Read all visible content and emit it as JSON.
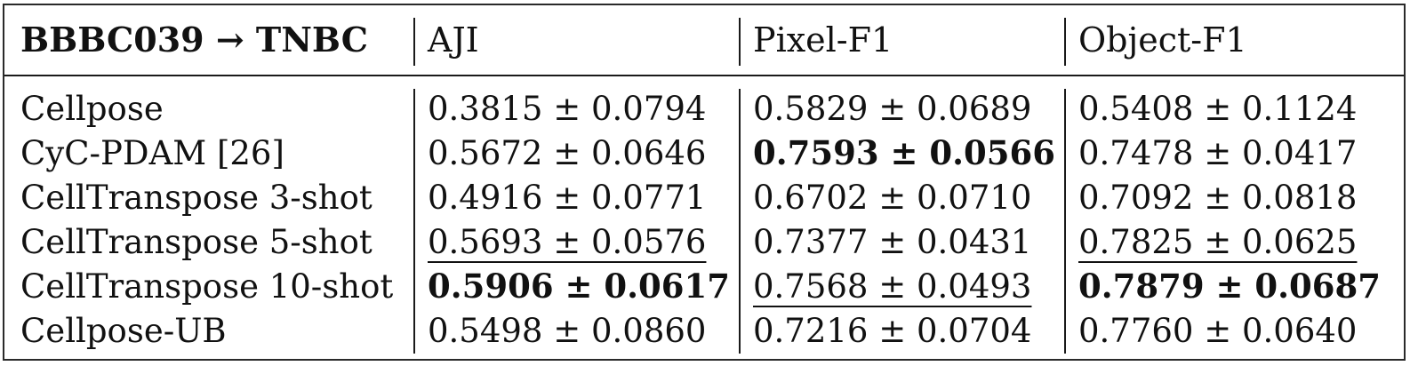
{
  "header": {
    "setting": "BBBC039 → TNBC",
    "columns": [
      "AJI",
      "Pixel-F1",
      "Object-F1"
    ]
  },
  "rows": [
    {
      "method": "Cellpose",
      "aji": "0.3815 ± 0.0794",
      "pixel_f1": "0.5829 ± 0.0689",
      "object_f1": "0.5408 ± 0.1124"
    },
    {
      "method": "CyC-PDAM [26]",
      "aji": "0.5672 ± 0.0646",
      "pixel_f1": "0.7593 ± 0.0566",
      "object_f1": "0.7478 ± 0.0417"
    },
    {
      "method": "CellTranspose 3-shot",
      "aji": "0.4916 ± 0.0771",
      "pixel_f1": "0.6702 ± 0.0710",
      "object_f1": "0.7092 ± 0.0818"
    },
    {
      "method": "CellTranspose 5-shot",
      "aji": "0.5693 ± 0.0576",
      "pixel_f1": "0.7377 ± 0.0431",
      "object_f1": "0.7825 ± 0.0625"
    },
    {
      "method": "CellTranspose 10-shot",
      "aji": "0.5906 ± 0.0617",
      "pixel_f1": "0.7568 ± 0.0493",
      "object_f1": "0.7879 ± 0.0687"
    },
    {
      "method": "Cellpose-UB",
      "aji": "0.5498 ± 0.0860",
      "pixel_f1": "0.7216 ± 0.0704",
      "object_f1": "0.7760 ± 0.0640"
    }
  ],
  "emphasis": {
    "bold": [
      "CyC-PDAM [26] Pixel-F1",
      "CellTranspose 10-shot AJI",
      "CellTranspose 10-shot Object-F1"
    ],
    "underline": [
      "CellTranspose 5-shot AJI",
      "CellTranspose 5-shot Object-F1",
      "CellTranspose 10-shot Pixel-F1"
    ]
  }
}
